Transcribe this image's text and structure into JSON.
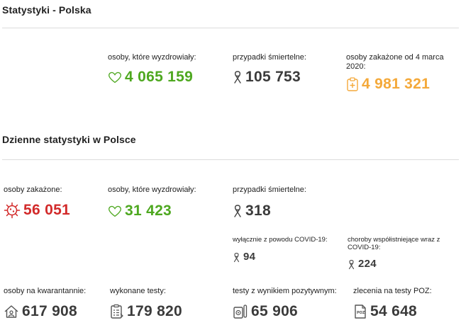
{
  "section1": {
    "title": "Statystyki - Polska"
  },
  "totals": {
    "recovered": {
      "label": "osoby, które wyzdrowiały:",
      "value": "4 065 159",
      "icon": "heart-icon",
      "color": "#4ea820"
    },
    "deaths": {
      "label": "przypadki śmiertelne:",
      "value": "105 753",
      "icon": "ribbon-icon",
      "color": "#3b3b3b"
    },
    "infected": {
      "label": "osoby zakażone od 4 marca 2020:",
      "value": "4 981 321",
      "icon": "clipboard-medical-icon",
      "color": "#f4a93a"
    }
  },
  "section2": {
    "title": "Dzienne statystyki w Polsce"
  },
  "daily": {
    "infected": {
      "label": "osoby zakażone:",
      "value": "56 051",
      "icon": "virus-icon",
      "color": "#d22a2a"
    },
    "recovered": {
      "label": "osoby, które wyzdrowiały:",
      "value": "31 423",
      "icon": "heart-icon",
      "color": "#4ea820"
    },
    "deaths": {
      "label": "przypadki śmiertelne:",
      "value": "318",
      "icon": "ribbon-icon",
      "color": "#3b3b3b"
    },
    "deaths_covid_only": {
      "label": "wyłącznie z powodu COVID-19:",
      "value": "94",
      "icon": "ribbon-icon"
    },
    "deaths_comorbid": {
      "label": "choroby współistniejące wraz z COVID-19:",
      "value": "224",
      "icon": "ribbon-icon"
    },
    "quarantine": {
      "label": "osoby na kwarantannie:",
      "value": "617 908",
      "icon": "house-icon"
    },
    "tests": {
      "label": "wykonane testy:",
      "value": "179 820",
      "icon": "clipboard-list-icon"
    },
    "positive_tests": {
      "label": "testy z wynikiem pozytywnym:",
      "value": "65 906",
      "icon": "test-tube-icon"
    },
    "poz_orders": {
      "label": "zlecenia na testy POZ:",
      "value": "54 648",
      "icon": "poz-document-icon"
    }
  }
}
